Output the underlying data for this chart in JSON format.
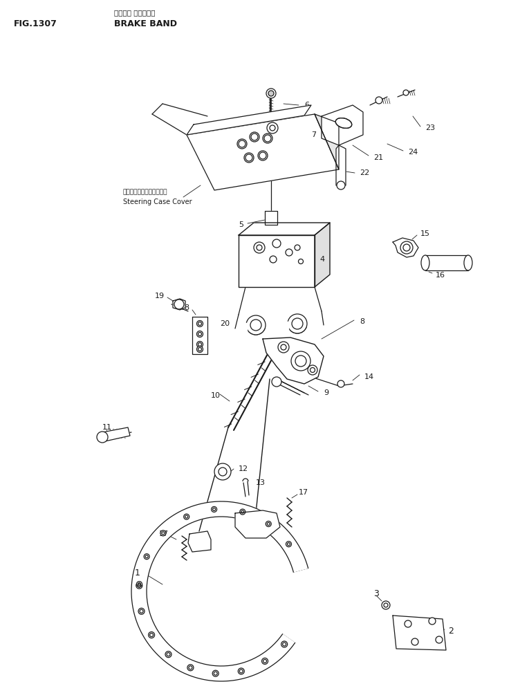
{
  "title_japanese": "ブレーキ バンド",
  "title_english": "BRAKE BAND",
  "fig_number": "FIG.1307",
  "label_note_japanese": "ステアリングケースカバー",
  "label_note_english": "Steering Case Cover",
  "background_color": "#ffffff",
  "line_color": "#1a1a1a"
}
